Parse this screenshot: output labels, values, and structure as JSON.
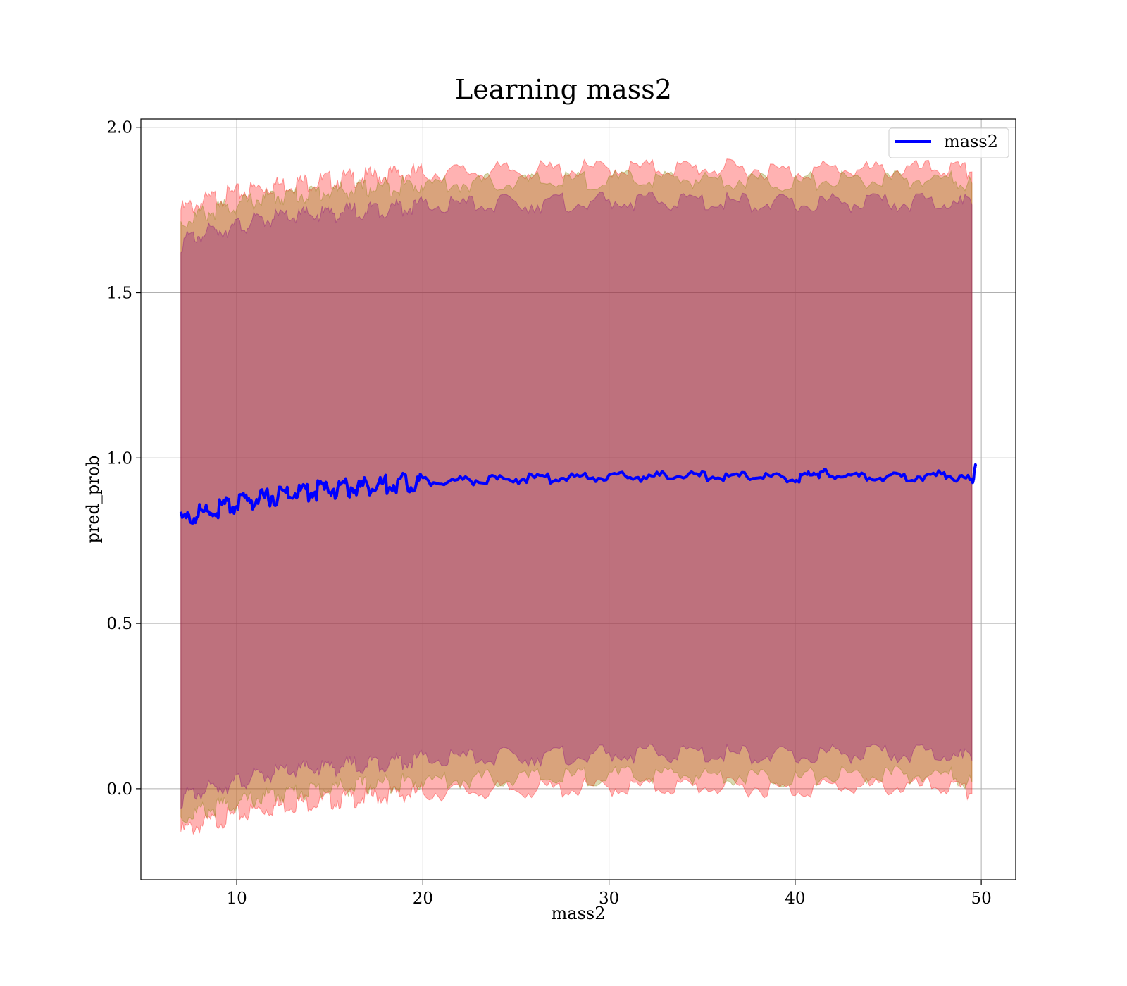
{
  "chart_data": {
    "type": "line",
    "title": "Learning mass2",
    "xlabel": "mass2",
    "ylabel": "pred_prob",
    "xlim": [
      4.85,
      51.85
    ],
    "ylim": [
      -0.275,
      2.025
    ],
    "xticks": [
      10,
      20,
      30,
      40,
      50
    ],
    "xtick_labels": [
      "10",
      "20",
      "30",
      "40",
      "50"
    ],
    "yticks": [
      0.0,
      0.5,
      1.0,
      1.5,
      2.0
    ],
    "ytick_labels": [
      "0.0",
      "0.5",
      "1.0",
      "1.5",
      "2.0"
    ],
    "grid": true,
    "legend": {
      "position": "top-right",
      "entries": [
        "mass2"
      ]
    },
    "colors": {
      "line": "#0000ff",
      "band_outer": "#ff0000",
      "band_middle": "#808000",
      "band_inner": "#800080",
      "grid": "#b0b0b0"
    },
    "series": [
      {
        "name": "mass2",
        "x": [
          7,
          8,
          9,
          10,
          11,
          12,
          13,
          14,
          15,
          16,
          17,
          18,
          19,
          20,
          22,
          24,
          26,
          28,
          30,
          32,
          34,
          36,
          38,
          40,
          41,
          42,
          44,
          46,
          48,
          49.5,
          49.7
        ],
        "y": [
          0.81,
          0.83,
          0.845,
          0.86,
          0.875,
          0.885,
          0.895,
          0.9,
          0.905,
          0.91,
          0.915,
          0.92,
          0.925,
          0.93,
          0.932,
          0.935,
          0.938,
          0.94,
          0.942,
          0.944,
          0.945,
          0.944,
          0.944,
          0.935,
          0.955,
          0.948,
          0.94,
          0.942,
          0.948,
          0.93,
          0.975
        ]
      }
    ],
    "bands": [
      {
        "label": "outer",
        "x": [
          7,
          8,
          9,
          10,
          11,
          12,
          13,
          14,
          15,
          16,
          17,
          18,
          19,
          20,
          22,
          24,
          26,
          28,
          30,
          32,
          34,
          36,
          38,
          40,
          42,
          44,
          46,
          48,
          49.5
        ],
        "upper": [
          1.75,
          1.77,
          1.79,
          1.8,
          1.815,
          1.825,
          1.83,
          1.835,
          1.84,
          1.845,
          1.85,
          1.855,
          1.86,
          1.862,
          1.865,
          1.868,
          1.87,
          1.872,
          1.875,
          1.876,
          1.876,
          1.875,
          1.873,
          1.865,
          1.875,
          1.87,
          1.872,
          1.874,
          1.865
        ],
        "lower": [
          -0.13,
          -0.11,
          -0.095,
          -0.08,
          -0.065,
          -0.055,
          -0.045,
          -0.04,
          -0.035,
          -0.03,
          -0.025,
          -0.02,
          -0.015,
          -0.012,
          -0.008,
          -0.005,
          -0.002,
          0.0,
          0.003,
          0.005,
          0.006,
          0.005,
          0.003,
          -0.005,
          0.008,
          0.004,
          0.005,
          0.006,
          -0.015
        ]
      },
      {
        "label": "middle",
        "x": [
          7,
          8,
          9,
          10,
          11,
          12,
          13,
          14,
          15,
          16,
          17,
          18,
          19,
          20,
          22,
          24,
          26,
          28,
          30,
          32,
          34,
          36,
          38,
          40,
          42,
          44,
          46,
          48,
          49.5
        ],
        "upper": [
          1.71,
          1.735,
          1.75,
          1.765,
          1.78,
          1.79,
          1.795,
          1.8,
          1.805,
          1.81,
          1.815,
          1.82,
          1.825,
          1.827,
          1.83,
          1.833,
          1.836,
          1.838,
          1.84,
          1.842,
          1.843,
          1.842,
          1.84,
          1.832,
          1.842,
          1.838,
          1.84,
          1.842,
          1.83
        ],
        "lower": [
          -0.09,
          -0.07,
          -0.055,
          -0.045,
          -0.03,
          -0.02,
          -0.01,
          -0.005,
          0.0,
          0.005,
          0.01,
          0.015,
          0.02,
          0.023,
          0.027,
          0.03,
          0.033,
          0.035,
          0.038,
          0.04,
          0.041,
          0.04,
          0.038,
          0.03,
          0.043,
          0.039,
          0.04,
          0.041,
          0.02
        ]
      },
      {
        "label": "inner",
        "x": [
          7,
          8,
          9,
          10,
          11,
          12,
          13,
          14,
          15,
          16,
          17,
          18,
          19,
          20,
          22,
          24,
          26,
          28,
          30,
          32,
          34,
          36,
          38,
          40,
          42,
          44,
          46,
          48,
          49.5
        ],
        "upper": [
          1.65,
          1.675,
          1.69,
          1.7,
          1.715,
          1.725,
          1.73,
          1.735,
          1.74,
          1.745,
          1.75,
          1.755,
          1.76,
          1.762,
          1.765,
          1.768,
          1.77,
          1.772,
          1.775,
          1.776,
          1.776,
          1.775,
          1.773,
          1.765,
          1.775,
          1.77,
          1.772,
          1.774,
          1.765
        ],
        "lower": [
          -0.03,
          -0.01,
          0.005,
          0.02,
          0.035,
          0.045,
          0.055,
          0.06,
          0.065,
          0.07,
          0.075,
          0.08,
          0.085,
          0.088,
          0.092,
          0.095,
          0.098,
          0.1,
          0.103,
          0.105,
          0.106,
          0.105,
          0.103,
          0.095,
          0.108,
          0.104,
          0.105,
          0.106,
          0.085
        ]
      }
    ]
  }
}
